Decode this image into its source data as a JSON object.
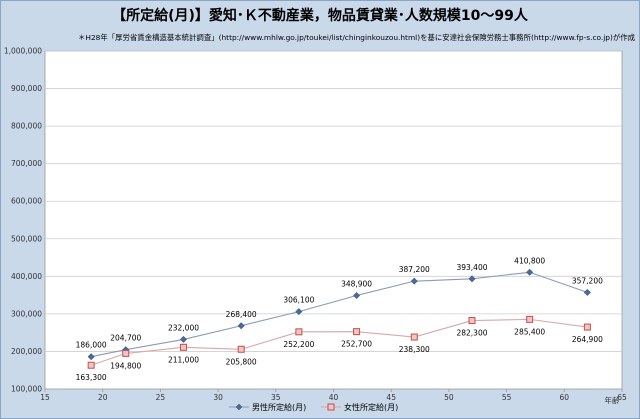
{
  "chart_data": {
    "type": "line",
    "title": "【所定給(月)】愛知･Ｋ不動産業，物品賃貸業･人数規模10～99人",
    "subtitle": "＊H28年「厚労省賃金構造基本統計調査」(http://www.mhlw.go.jp/toukei/list/chinginkouzou.html)を基に安達社会保険労務士事務所(http://www.fp-s.co.jp)が作成",
    "xlabel": "年齢",
    "ylabel": "",
    "xlim": [
      15,
      65
    ],
    "ylim": [
      100000,
      1000000
    ],
    "x_ticks": [
      "15",
      "20",
      "25",
      "30",
      "35",
      "40",
      "45",
      "50",
      "55",
      "60",
      "65"
    ],
    "y_ticks": [
      "100,000",
      "200,000",
      "300,000",
      "400,000",
      "500,000",
      "600,000",
      "700,000",
      "800,000",
      "900,000",
      "1,000,000"
    ],
    "grid": true,
    "legend_position": "bottom",
    "series": [
      {
        "name": "男性所定給(月)",
        "color": "#4a6a9a",
        "marker": "diamond",
        "x": [
          19,
          22,
          27,
          32,
          37,
          42,
          47,
          52,
          57,
          62
        ],
        "values": [
          186000,
          204700,
          232000,
          268400,
          306100,
          348900,
          387200,
          393400,
          410800,
          357200
        ],
        "labels": [
          "186,000",
          "204,700",
          "232,000",
          "268,400",
          "306,100",
          "348,900",
          "387,200",
          "393,400",
          "410,800",
          "357,200"
        ]
      },
      {
        "name": "女性所定給(月)",
        "color": "#c0504d",
        "marker": "square",
        "x": [
          19,
          22,
          27,
          32,
          37,
          42,
          47,
          52,
          57,
          62
        ],
        "values": [
          163300,
          194800,
          211000,
          205800,
          252200,
          252700,
          238300,
          282300,
          285400,
          264900
        ],
        "labels": [
          "163,300",
          "194,800",
          "211,000",
          "205,800",
          "252,200",
          "252,700",
          "238,300",
          "282,300",
          "285,400",
          "264,900"
        ]
      }
    ]
  }
}
